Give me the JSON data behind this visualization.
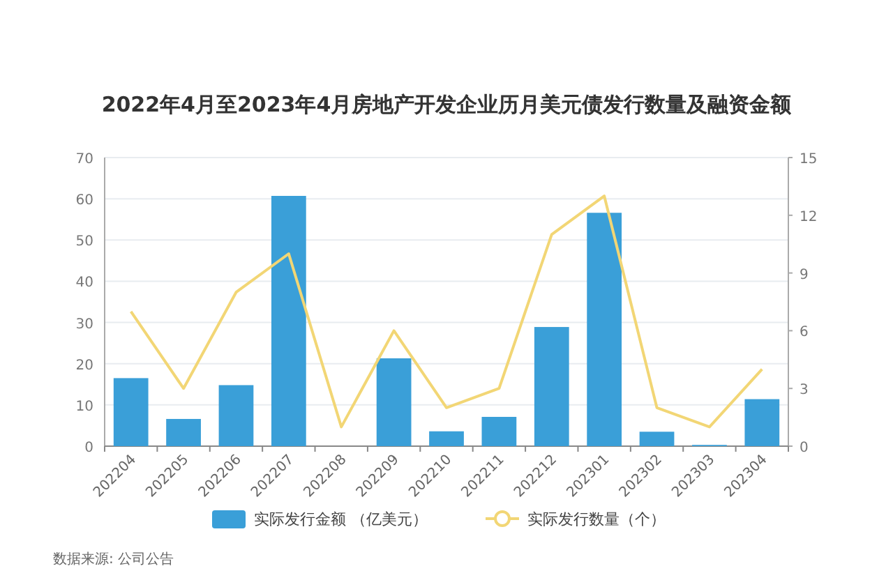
{
  "chart_data": {
    "type": "bar",
    "title": "2022年4月至2023年4月房地产开发企业历月美元债发行数量及融资金额",
    "categories": [
      "202204",
      "202205",
      "202206",
      "202207",
      "202208",
      "202209",
      "202210",
      "202211",
      "202212",
      "202301",
      "202302",
      "202303",
      "202304"
    ],
    "series": [
      {
        "name": "实际发行金额 （亿美元）",
        "color": "#3a9fd8",
        "values": [
          16.5,
          6.6,
          14.8,
          60.7,
          0,
          21.3,
          3.6,
          7.1,
          28.9,
          56.6,
          3.5,
          0.3,
          11.4
        ]
      },
      {
        "name": "实际发行数量（个）",
        "type": "line",
        "axis": "y2",
        "color": "#f2d675",
        "values": [
          7,
          3,
          8,
          10,
          1,
          6,
          2,
          3,
          11,
          13,
          2,
          1,
          4
        ]
      }
    ],
    "ylim": [
      0,
      70
    ],
    "yticks": [
      0,
      10,
      20,
      30,
      40,
      50,
      60,
      70
    ],
    "y2lim": [
      0,
      15
    ],
    "y2ticks": [
      0,
      3,
      6,
      9,
      12,
      15
    ],
    "grid": "y",
    "legend": "bottom",
    "annotations": [
      "数据来源: 公司公告"
    ]
  }
}
